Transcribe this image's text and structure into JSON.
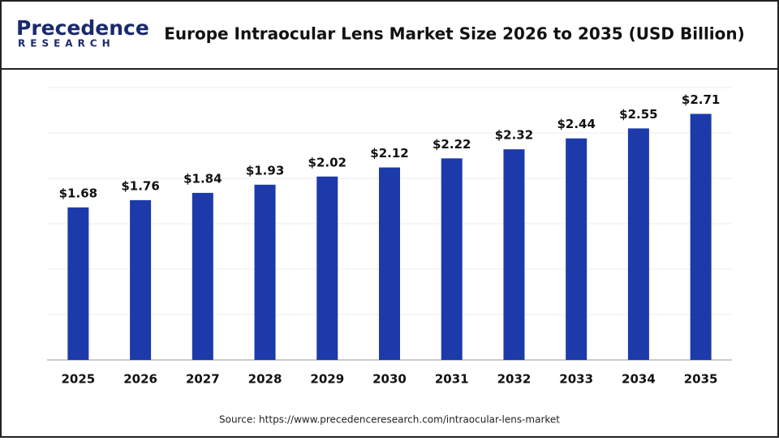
{
  "chart_data": {
    "type": "bar",
    "logo": {
      "name": "Precedence",
      "sub": "RESEARCH"
    },
    "title": "Europe Intraocular Lens Market Size 2026 to 2035 (USD Billion)",
    "categories": [
      "2025",
      "2026",
      "2027",
      "2028",
      "2029",
      "2030",
      "2031",
      "2032",
      "2033",
      "2034",
      "2035"
    ],
    "values": [
      1.68,
      1.76,
      1.84,
      1.93,
      2.02,
      2.12,
      2.22,
      2.32,
      2.44,
      2.55,
      2.71
    ],
    "value_labels": [
      "$1.68",
      "$1.76",
      "$1.84",
      "$1.93",
      "$2.02",
      "$2.12",
      "$2.22",
      "$2.32",
      "$2.44",
      "$2.55",
      "$2.71"
    ],
    "color": "#1c3aa9",
    "ylim": [
      0,
      3
    ],
    "yticks": [
      0,
      0.5,
      1,
      1.5,
      2,
      2.5,
      3
    ],
    "grid": true,
    "source": "Source: https://www.precedenceresearch.com/intraocular-lens-market"
  }
}
